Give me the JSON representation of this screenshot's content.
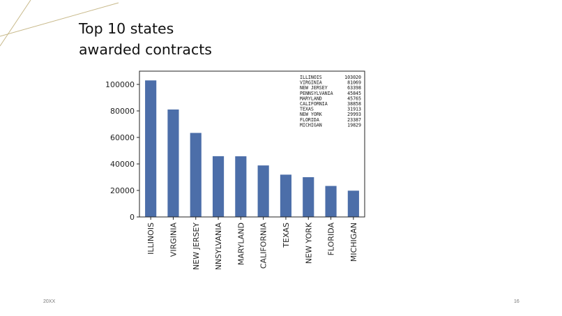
{
  "slide": {
    "title_line1": "Top 10 states",
    "title_line2": "awarded contracts",
    "footer_left": "20XX",
    "page_number": "16"
  },
  "colors": {
    "bar": "#4c6ea9",
    "accent_line": "#c8b98a"
  },
  "chart_data": {
    "type": "bar",
    "categories": [
      "ILLINOIS",
      "VIRGINIA",
      "NEW JERSEY",
      "PENNSYLVANIA",
      "MARYLAND",
      "CALIFORNIA",
      "TEXAS",
      "NEW YORK",
      "FLORIDA",
      "MICHIGAN"
    ],
    "values": [
      103020,
      81069,
      63398,
      45845,
      45765,
      38858,
      31913,
      29993,
      23387,
      19829
    ],
    "ylim": [
      0,
      110000
    ],
    "yticks": [
      0,
      20000,
      40000,
      60000,
      80000,
      100000
    ],
    "grid": false,
    "annotation_table": {
      "rows": [
        [
          "ILLINOIS",
          "103020"
        ],
        [
          "VIRGINIA",
          "81069"
        ],
        [
          "NEW JERSEY",
          "63398"
        ],
        [
          "PENNSYLVANIA",
          "45845"
        ],
        [
          "MARYLAND",
          "45765"
        ],
        [
          "CALIFORNIA",
          "38858"
        ],
        [
          "TEXAS",
          "31913"
        ],
        [
          "NEW YORK",
          "29993"
        ],
        [
          "FLORIDA",
          "23387"
        ],
        [
          "MICHIGAN",
          "19829"
        ]
      ],
      "placement": "top-right"
    }
  }
}
